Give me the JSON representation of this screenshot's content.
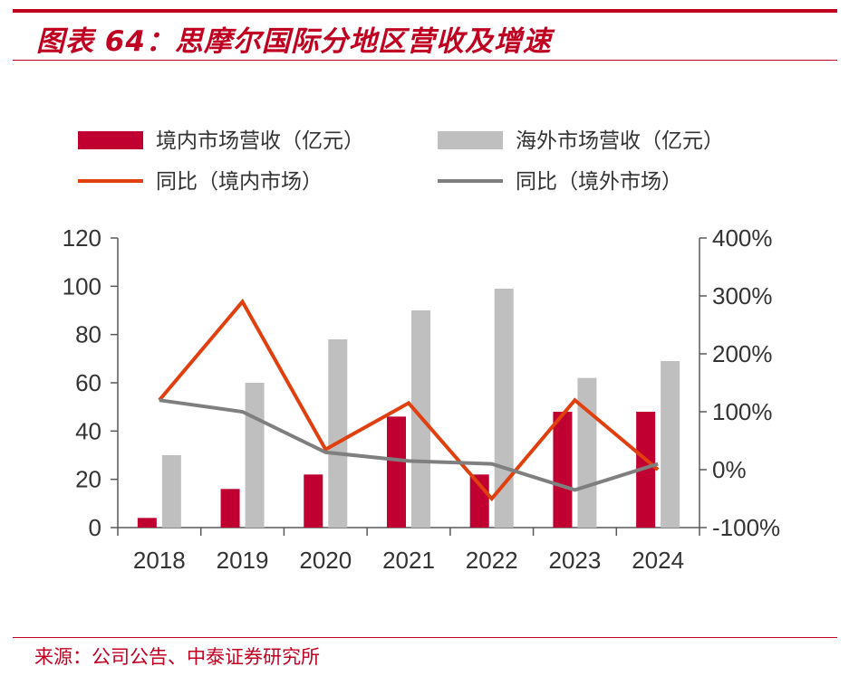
{
  "header": {
    "title": "图表 64：思摩尔国际分地区营收及增速"
  },
  "footer": {
    "source": "来源：公司公告、中泰证券研究所"
  },
  "colors": {
    "brand_red": "#c00020",
    "domestic_bar": "#c00030",
    "overseas_bar": "#bfbfbf",
    "domestic_line": "#e04010",
    "overseas_line": "#7f7f7f"
  },
  "chart_data": {
    "type": "bar",
    "categories": [
      "2018",
      "2019",
      "2020",
      "2021",
      "2022",
      "2023",
      "2024"
    ],
    "series": [
      {
        "name": "境内市场营收（亿元）",
        "kind": "bar",
        "axis": "left",
        "values": [
          4,
          16,
          22,
          46,
          22,
          48,
          48
        ]
      },
      {
        "name": "海外市场营收（亿元）",
        "kind": "bar",
        "axis": "left",
        "values": [
          30,
          60,
          78,
          90,
          99,
          62,
          69
        ]
      },
      {
        "name": "同比（境内市场）",
        "kind": "line",
        "axis": "right",
        "values": [
          120,
          290,
          35,
          115,
          -50,
          120,
          0
        ]
      },
      {
        "name": "同比（境外市场）",
        "kind": "line",
        "axis": "right",
        "values": [
          120,
          100,
          30,
          15,
          10,
          -35,
          10
        ]
      }
    ],
    "y_left": {
      "ylim": [
        0,
        120
      ],
      "ticks": [
        "0",
        "20",
        "40",
        "60",
        "80",
        "100",
        "120"
      ]
    },
    "y_right": {
      "ylim": [
        -100,
        400
      ],
      "ticks": [
        "-100%",
        "0%",
        "100%",
        "200%",
        "300%",
        "400%"
      ]
    },
    "legend_position": "top",
    "grid": false
  }
}
